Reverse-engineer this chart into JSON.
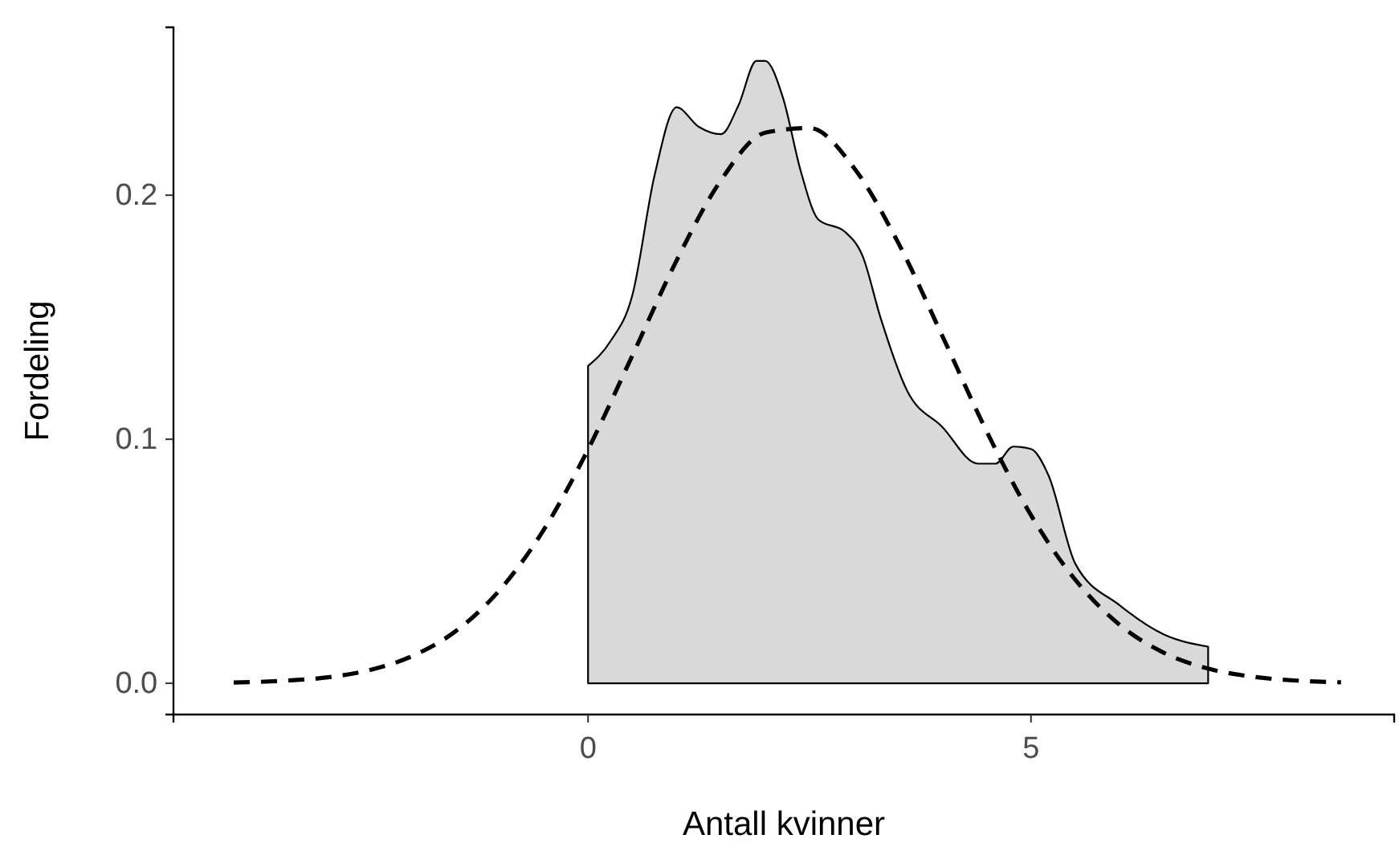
{
  "chart_data": {
    "type": "area",
    "xlabel": "Antall kvinner",
    "ylabel": "Fordeling",
    "xlim": [
      -4.68,
      9.1
    ],
    "ylim": [
      -0.0128,
      0.2688
    ],
    "xticks": [
      0,
      5
    ],
    "yticks": [
      {
        "value": 0,
        "label": "0.0"
      },
      {
        "value": 0.1,
        "label": "0.1"
      },
      {
        "value": 0.2,
        "label": "0.2"
      }
    ],
    "grid": false,
    "series": [
      {
        "color": "#d9d9d9",
        "x": [
          0,
          0.25,
          0.5,
          0.75,
          1,
          1.25,
          1.5,
          1.7,
          1.9,
          2,
          2.2,
          2.4,
          2.6,
          2.9,
          3.1,
          3.3,
          3.6,
          4,
          4.4,
          4.6,
          4.8,
          5,
          5.2,
          5.5,
          6,
          6.5,
          7
        ],
        "values": [
          0.13,
          0.14,
          0.159,
          0.208,
          0.236,
          0.228,
          0.225,
          0.237,
          0.255,
          0.255,
          0.24,
          0.21,
          0.19,
          0.185,
          0.175,
          0.15,
          0.12,
          0.105,
          0.09,
          0.09,
          0.097,
          0.096,
          0.085,
          0.049,
          0.032,
          0.02,
          0.015
        ]
      },
      {
        "type": "line",
        "color": "#000000",
        "line_style": "dashed",
        "x": [
          -4,
          -3.5,
          -3,
          -2.5,
          -2,
          -1.5,
          -1,
          -0.5,
          0,
          0.5,
          1,
          1.5,
          2,
          2.5,
          3,
          3.5,
          4,
          4.5,
          5,
          5.5,
          6,
          6.5,
          7,
          7.5,
          8,
          8.5
        ],
        "values": [
          0.0003,
          0.0009,
          0.0022,
          0.0051,
          0.0109,
          0.0212,
          0.0381,
          0.0629,
          0.0958,
          0.1343,
          0.1733,
          0.2061,
          0.2256,
          0.2275,
          0.2113,
          0.1806,
          0.1423,
          0.1032,
          0.0689,
          0.0424,
          0.024,
          0.0125,
          0.006,
          0.0027,
          0.0011,
          0.0004
        ]
      }
    ]
  }
}
